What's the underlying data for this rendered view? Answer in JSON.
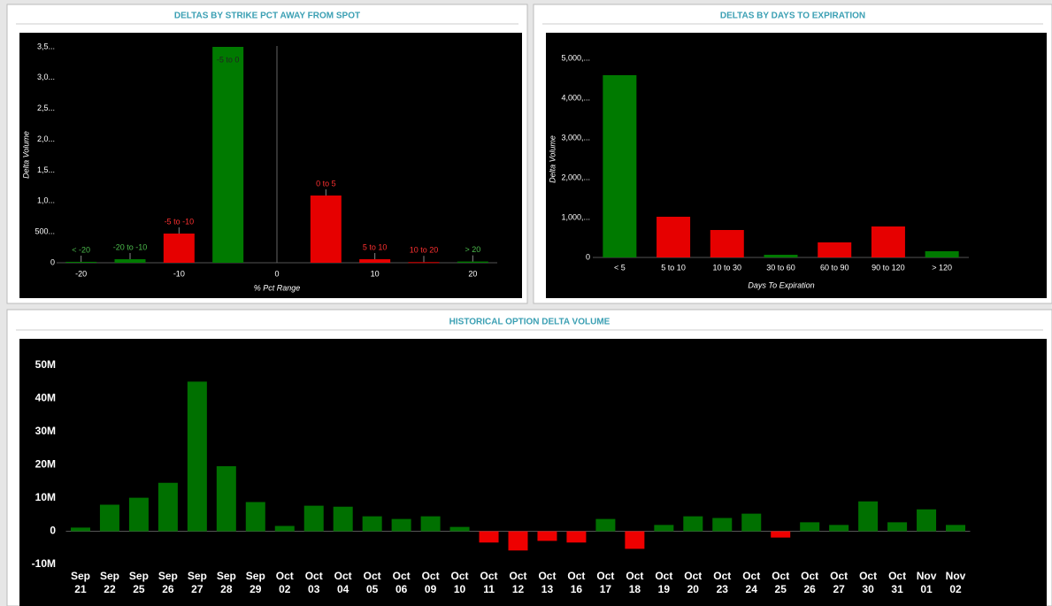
{
  "chart_data": [
    {
      "type": "bar",
      "title": "DELTAS BY STRIKE PCT AWAY FROM SPOT",
      "x_label": "% Pct Range",
      "y_label": "Delta Volume",
      "categories": [
        "< -20",
        "-20 to -10",
        "-5 to -10",
        "-5 to 0",
        "0 to 5",
        "5 to 10",
        "10 to 20",
        "> 20"
      ],
      "x": [
        -20,
        -15,
        -10,
        -5,
        5,
        10,
        15,
        20
      ],
      "values": [
        15,
        57,
        473,
        3500,
        1090,
        57,
        10,
        20
      ],
      "colors": [
        "#007a00",
        "#007a00",
        "#e60000",
        "#007a00",
        "#e60000",
        "#e60000",
        "#e60000",
        "#007a00"
      ],
      "xlim": [
        -22.5,
        22.5
      ],
      "xticks": [
        -20,
        -10,
        0,
        10,
        20
      ],
      "ylim": [
        0,
        3500
      ],
      "yticks": [
        0,
        {
          "value": 500,
          "label": "500..."
        },
        {
          "value": 1000,
          "label": "1,0..."
        },
        {
          "value": 1500,
          "label": "1,5..."
        },
        {
          "value": 2000,
          "label": "2,0..."
        },
        {
          "value": 2500,
          "label": "2,5..."
        },
        {
          "value": 3000,
          "label": "3,0..."
        },
        {
          "value": 3500,
          "label": "3,5..."
        }
      ]
    },
    {
      "type": "bar",
      "title": "DELTAS BY DAYS TO EXPIRATION",
      "x_label": "Days To Expiration",
      "y_label": "Delta Volume",
      "categories": [
        "< 5",
        "5 to 10",
        "10 to 30",
        "30 to 60",
        "60 to 90",
        "90 to 120",
        "> 120"
      ],
      "values": [
        4578,
        1022,
        689,
        67,
        378,
        778,
        156
      ],
      "colors": [
        "#007a00",
        "#e60000",
        "#e60000",
        "#007a00",
        "#e60000",
        "#e60000",
        "#007a00"
      ],
      "ylim": [
        0,
        5000
      ],
      "yticks": [
        0,
        {
          "value": 1000,
          "label": "1,000,..."
        },
        {
          "value": 2000,
          "label": "2,000,..."
        },
        {
          "value": 3000,
          "label": "3,000,..."
        },
        {
          "value": 4000,
          "label": "4,000,..."
        },
        {
          "value": 5000,
          "label": "5,000,..."
        }
      ]
    },
    {
      "type": "bar",
      "title": "HISTORICAL OPTION DELTA VOLUME",
      "categories": [
        "Sep 21",
        "Sep 22",
        "Sep 25",
        "Sep 26",
        "Sep 27",
        "Sep 28",
        "Sep 29",
        "Oct 02",
        "Oct 03",
        "Oct 04",
        "Oct 05",
        "Oct 06",
        "Oct 09",
        "Oct 10",
        "Oct 11",
        "Oct 12",
        "Oct 13",
        "Oct 16",
        "Oct 17",
        "Oct 18",
        "Oct 19",
        "Oct 20",
        "Oct 23",
        "Oct 24",
        "Oct 25",
        "Oct 26",
        "Oct 27",
        "Oct 30",
        "Oct 31",
        "Nov 01",
        "Nov 02"
      ],
      "values": [
        1100000,
        8000000,
        10100000,
        14600000,
        45100000,
        19600000,
        8800000,
        1600000,
        7700000,
        7400000,
        4500000,
        3700000,
        4500000,
        1300000,
        -3400000,
        -5800000,
        -2900000,
        -3400000,
        3700000,
        -5300000,
        1900000,
        4500000,
        4000000,
        5300000,
        -1900000,
        2700000,
        1900000,
        9000000,
        2700000,
        6600000,
        1900000
      ],
      "color": "#007000",
      "negative_color": "#ee0000",
      "ylim": [
        -10000000,
        50000000
      ],
      "yticks": [
        {
          "value": -10000000,
          "label": "-10M"
        },
        0,
        {
          "value": 10000000,
          "label": "10M"
        },
        {
          "value": 20000000,
          "label": "20M"
        },
        {
          "value": 30000000,
          "label": "30M"
        },
        {
          "value": 40000000,
          "label": "40M"
        },
        {
          "value": 50000000,
          "label": "50M"
        }
      ]
    }
  ]
}
